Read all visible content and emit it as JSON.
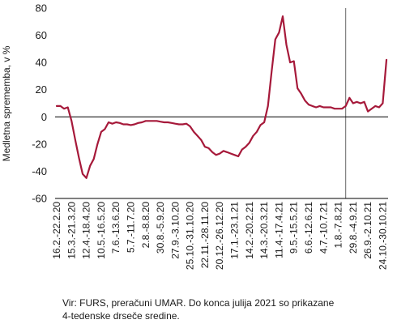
{
  "chart_data": {
    "type": "line",
    "title": "",
    "xlabel": "",
    "ylabel": "Medletna sprememba, v %",
    "ylim": [
      -60,
      80
    ],
    "yticks": [
      -60,
      -40,
      -20,
      0,
      20,
      40,
      60,
      80
    ],
    "grid": false,
    "legend": "none",
    "x_tick_labels": [
      "16.2.-22.2.20",
      "15.3.-21.3.20",
      "12.4.-18.4.20",
      "10.5.-16.5.20",
      "7.6.-13.6.20",
      "5.7.-11.7.20",
      "2.8.-8.8.20",
      "30.8.-5.9.20",
      "27.9.-3.10.20",
      "25.10.-31.10.20",
      "22.11.-28.11.20",
      "20.12.-26.12.20",
      "17.1.-23.1.21",
      "14.2.-20.2.21",
      "14.3.-20.3.21",
      "11.4.-17.4.21",
      "9.5.-15.5.21",
      "6.6.-12.6.21",
      "4.7.-10.7.21",
      "1.8.-7.8.21",
      "29.8.-4.9.21",
      "26.9.-2.10.21",
      "24.10.-30.10.21"
    ],
    "divider_after_label": "1.8.-7.8.21",
    "series": [
      {
        "color": "#a6193a",
        "values": [
          8,
          8,
          6,
          7,
          -3,
          -17,
          -30,
          -42,
          -45,
          -36,
          -31,
          -20,
          -11,
          -9,
          -4,
          -5,
          -4,
          -4.5,
          -5.5,
          -5.5,
          -6,
          -5.5,
          -4.5,
          -4,
          -3,
          -3,
          -3,
          -3,
          -3.5,
          -4,
          -4,
          -4.5,
          -5,
          -5.5,
          -5.5,
          -5,
          -7,
          -11,
          -14,
          -17,
          -22,
          -23,
          -26,
          -28,
          -27,
          -25,
          -26,
          -27,
          -28,
          -29,
          -24,
          -22,
          -19,
          -14,
          -11,
          -6,
          -4,
          8,
          33,
          57,
          62,
          74,
          53,
          40,
          41,
          21,
          17,
          12,
          9,
          8,
          7,
          8,
          7,
          7,
          7,
          6,
          6,
          6,
          8,
          14,
          10,
          11,
          10,
          11,
          4,
          6,
          8,
          7,
          10,
          42
        ]
      }
    ]
  },
  "notes": {
    "line1": "Vir: FURS, preračuni UMAR. Do konca julija 2021 so prikazane",
    "line2": "4-tedenske drseče sredine."
  }
}
